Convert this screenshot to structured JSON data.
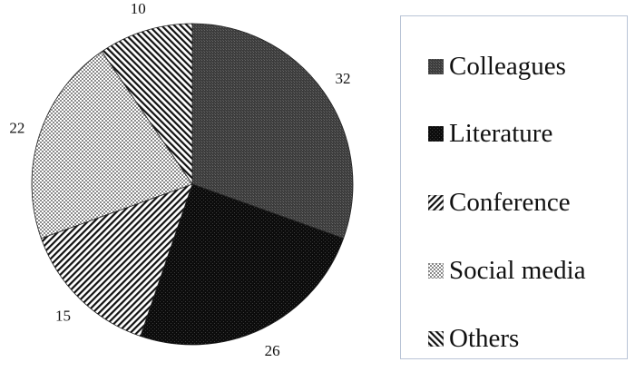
{
  "chart_data": {
    "type": "pie",
    "title": "",
    "categories": [
      "Colleagues",
      "Literature",
      "Conference",
      "Social media",
      "Others"
    ],
    "values": [
      32,
      26,
      15,
      22,
      10
    ],
    "start_angle_deg": 90,
    "direction": "clockwise",
    "data_labels": [
      "32",
      "26",
      "15",
      "22",
      "10"
    ],
    "legend_position": "right",
    "patterns": [
      "fine-dark-grid",
      "dense-black-dots",
      "diagonal-stripes-down",
      "light-checker",
      "diagonal-stripes-up"
    ],
    "colors": [
      "#4a4a4a",
      "#161616",
      "#ffffff",
      "#d8d8d8",
      "#ffffff"
    ]
  },
  "legend": {
    "items": [
      {
        "label": "Colleagues"
      },
      {
        "label": "Literature"
      },
      {
        "label": "Conference"
      },
      {
        "label": "Social media"
      },
      {
        "label": "Others"
      }
    ]
  }
}
